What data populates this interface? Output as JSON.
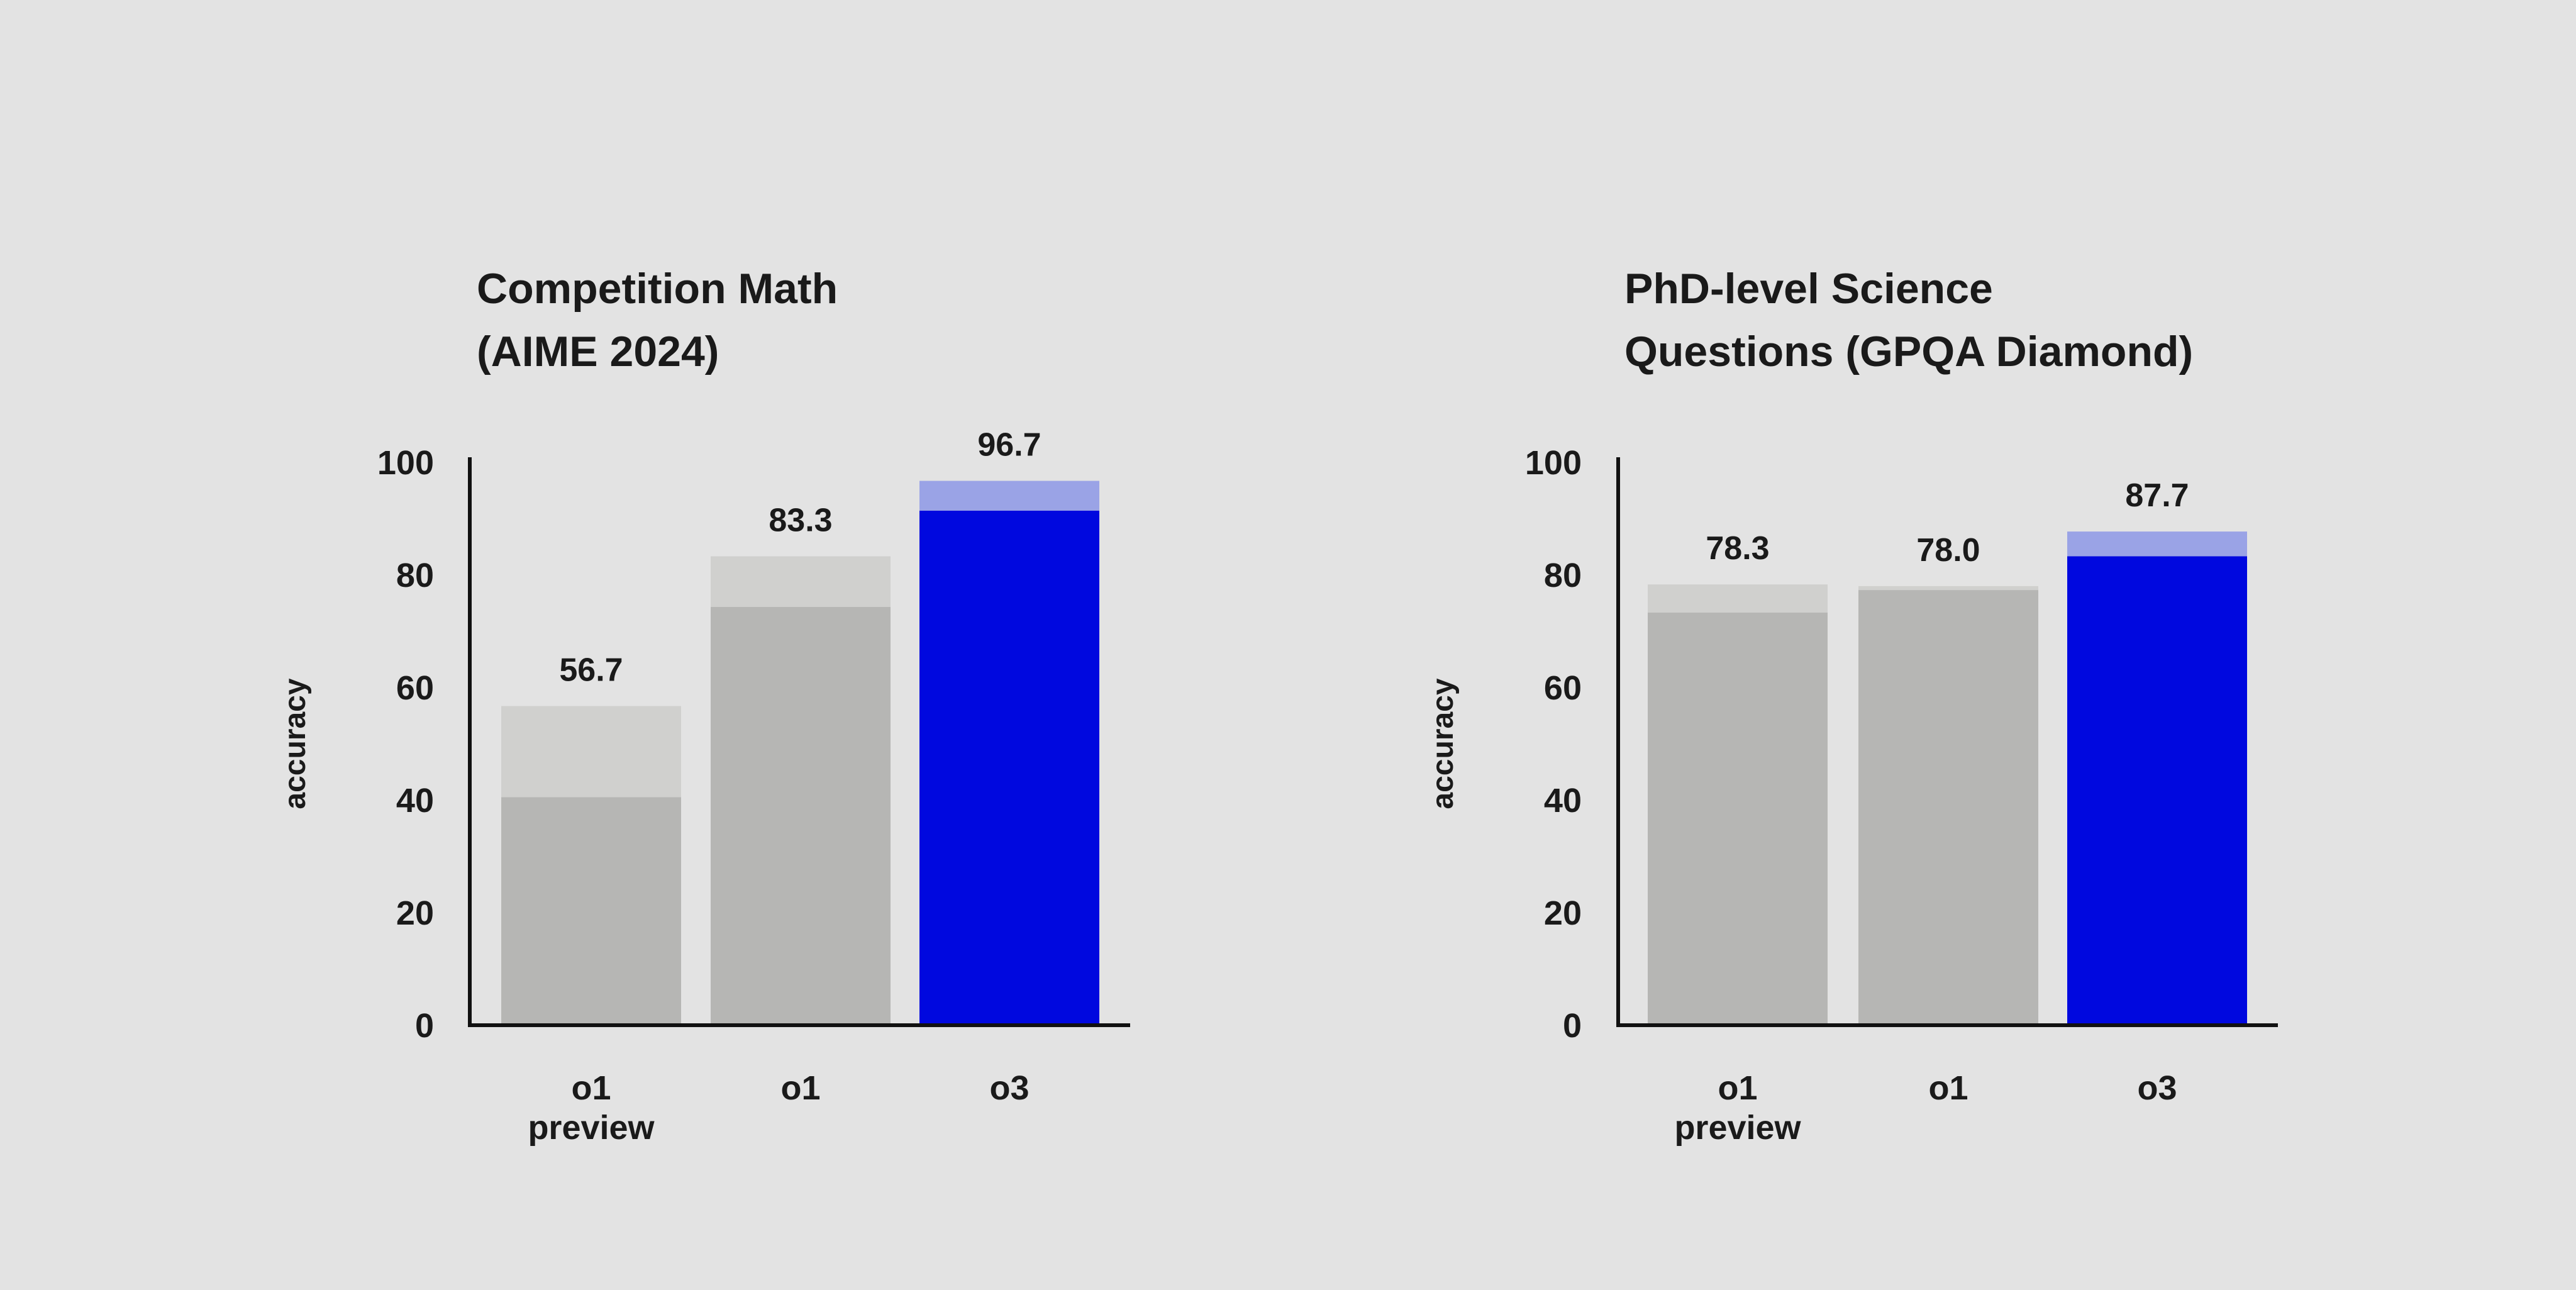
{
  "colors": {
    "background": "#e3e3e3",
    "gray_base": "#b6b6b4",
    "gray_extension": "#d0d0ce",
    "o3_base": "#0008df",
    "o3_extension": "#9aa3e6",
    "axis": "#111111"
  },
  "chart_data": [
    {
      "type": "bar",
      "title_lines": [
        "Competition Math",
        "(AIME 2024)"
      ],
      "ylabel": "accuracy",
      "ylim": [
        0,
        100
      ],
      "yticks": [
        0,
        20,
        40,
        60,
        80,
        100
      ],
      "categories": [
        [
          "o1",
          "preview"
        ],
        [
          "o1"
        ],
        [
          "o3"
        ]
      ],
      "series": [
        {
          "values": [
            40.5,
            74.3,
            91.4
          ],
          "role": "base"
        },
        {
          "values": [
            56.7,
            83.3,
            96.7
          ],
          "role": "total"
        }
      ],
      "value_labels": [
        "56.7",
        "83.3",
        "96.7"
      ],
      "highlight_index": 2,
      "grid": false,
      "legend": "none"
    },
    {
      "type": "bar",
      "title_lines": [
        "PhD-level Science",
        "Questions (GPQA Diamond)"
      ],
      "ylabel": "accuracy",
      "ylim": [
        0,
        100
      ],
      "yticks": [
        0,
        20,
        40,
        60,
        80,
        100
      ],
      "categories": [
        [
          "o1",
          "preview"
        ],
        [
          "o1"
        ],
        [
          "o3"
        ]
      ],
      "series": [
        {
          "values": [
            73.3,
            77.3,
            83.3
          ],
          "role": "base"
        },
        {
          "values": [
            78.3,
            78.0,
            87.7
          ],
          "role": "total"
        }
      ],
      "value_labels": [
        "78.3",
        "78.0",
        "87.7"
      ],
      "highlight_index": 2,
      "grid": false,
      "legend": "none"
    }
  ]
}
